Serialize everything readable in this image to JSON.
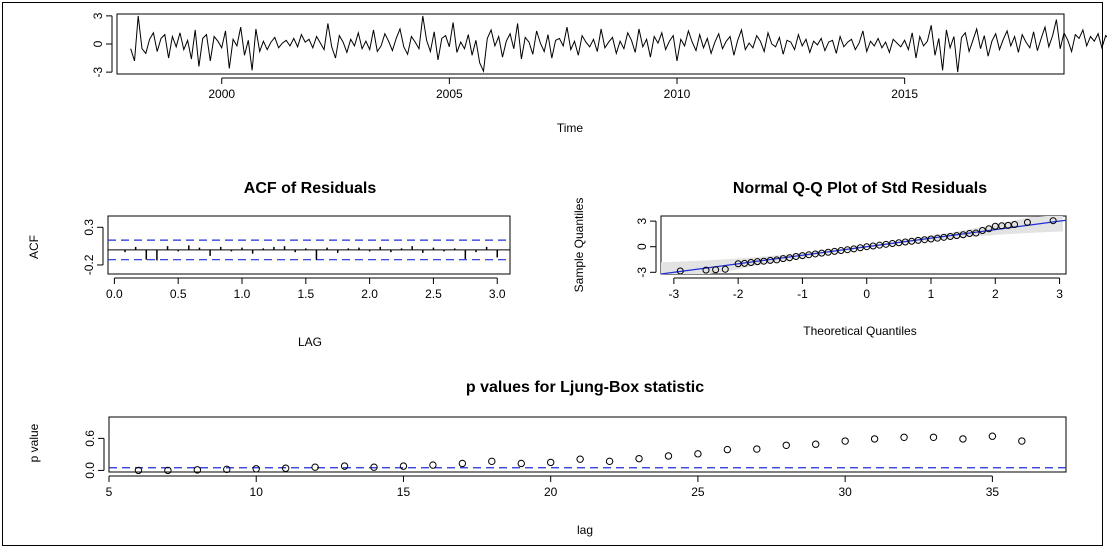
{
  "chart_data": [
    {
      "type": "line",
      "title": "",
      "xlabel": "Time",
      "ylabel": "",
      "xlim": [
        1997.7,
        2018.5
      ],
      "ylim": [
        -3.2,
        3.2
      ],
      "xticks": [
        "2000",
        "2005",
        "2010",
        "2015"
      ],
      "yticks": [
        "-3",
        "0",
        "3"
      ],
      "series": [
        {
          "x_start": 1998.0,
          "x_step": 0.08333,
          "values": [
            -0.5,
            -1.8,
            3.0,
            -0.5,
            -1.0,
            0.5,
            1.2,
            -0.8,
            0.6,
            1.0,
            -1.5,
            0.8,
            -0.3,
            1.2,
            -0.6,
            0.4,
            -1.6,
            1.5,
            -2.4,
            0.6,
            1.0,
            -1.8,
            0.8,
            0.3,
            -0.4,
            1.4,
            -2.6,
            0.5,
            -0.2,
            1.8,
            -1.2,
            0.4,
            -2.8,
            1.6,
            -0.8,
            0.3,
            -0.6,
            0.2,
            0.7,
            -0.4,
            0.1,
            0.4,
            -0.2,
            0.6,
            -0.3,
            1.0,
            0.2,
            0.5,
            -0.4,
            0.8,
            0.1,
            -0.6,
            2.2,
            -0.3,
            -1.5,
            0.9,
            0.2,
            -0.9,
            0.5,
            -0.2,
            1.2,
            -0.5,
            0.3,
            -0.6,
            1.5,
            -0.8,
            -0.2,
            1.1,
            0.3,
            -0.7,
            0.6,
            1.6,
            -0.3,
            -1.1,
            0.8,
            0.2,
            -0.5,
            3.0,
            0.4,
            -0.8,
            1.3,
            -1.7,
            0.6,
            0.9,
            -0.3,
            2.3,
            -0.9,
            0.2,
            -0.5,
            1.0,
            -1.2,
            0.4,
            -2.0,
            -2.9,
            0.6,
            1.5,
            -0.2,
            0.8,
            -1.4,
            0.3,
            1.1,
            -0.5,
            2.2,
            -1.6,
            0.7,
            0.2,
            -1.1,
            1.4,
            0.1,
            -0.8,
            1.0,
            -1.5,
            0.4,
            0.6,
            -0.2,
            1.8,
            -0.6,
            0.3,
            -1.2,
            0.9,
            0.2,
            -0.3,
            0.5,
            -0.8,
            1.6,
            -0.4,
            0.2,
            0.7,
            -1.0,
            0.3,
            -0.5,
            1.2,
            0.4,
            -0.9,
            1.6,
            -0.3,
            0.5,
            -1.4,
            0.8,
            0.1,
            1.2,
            -0.6,
            0.3,
            0.9,
            -1.8,
            0.5,
            -0.2,
            1.4,
            0.2,
            -0.7,
            1.0,
            -0.4,
            0.6,
            -1.0,
            0.2,
            1.1,
            -0.5,
            0.3,
            0.8,
            -1.2,
            0.4,
            1.5,
            -0.6,
            0.1,
            -0.4,
            0.9,
            0.3,
            -0.8,
            1.2,
            0.0,
            -0.3,
            0.7,
            -1.1,
            0.4,
            0.2,
            -0.6,
            1.0,
            -0.2,
            0.5,
            -0.9,
            0.3,
            -0.1,
            0.6,
            -0.7,
            0.2,
            0.4,
            -1.0,
            0.8,
            -0.3,
            0.2,
            0.5,
            -0.6,
            0.1,
            1.4,
            -0.8,
            0.3,
            -0.2,
            0.6,
            -0.4,
            0.2,
            -0.9,
            0.5,
            0.1,
            -0.3,
            0.4,
            -0.6,
            1.2,
            -1.5,
            0.8,
            -0.2,
            0.3,
            2.0,
            -1.2,
            0.6,
            -2.8,
            1.5,
            -0.4,
            0.8,
            -3.0,
            0.7,
            1.2,
            -0.8,
            0.4,
            1.6,
            -0.5,
            0.9,
            -1.3,
            0.3,
            1.1,
            -0.6,
            0.5,
            1.4,
            -0.2,
            0.8,
            -0.9,
            1.0,
            0.2,
            -0.4,
            1.3,
            -0.7,
            0.6,
            1.8,
            -0.3,
            0.9,
            2.6,
            -0.5,
            1.2,
            0.4,
            -0.8,
            1.0,
            0.6,
            1.5,
            -0.2,
            0.8,
            0.3,
            1.1,
            -0.4,
            0.9,
            0.5
          ]
        }
      ]
    },
    {
      "type": "bar",
      "title": "ACF of Residuals",
      "xlabel": "LAG",
      "ylabel": "ACF",
      "xlim": [
        -0.05,
        3.1
      ],
      "ylim": [
        -0.32,
        0.45
      ],
      "xticks": [
        "0.0",
        "0.5",
        "1.0",
        "1.5",
        "2.0",
        "2.5",
        "3.0"
      ],
      "yticks": [
        "-0.2",
        "0.3"
      ],
      "confidence_band": [
        -0.13,
        0.13
      ],
      "x": [
        0.0833,
        0.1667,
        0.25,
        0.3333,
        0.4167,
        0.5,
        0.5833,
        0.6667,
        0.75,
        0.8333,
        0.9167,
        1.0,
        1.0833,
        1.1667,
        1.25,
        1.3333,
        1.4167,
        1.5,
        1.5833,
        1.6667,
        1.75,
        1.8333,
        1.9167,
        2.0,
        2.0833,
        2.1667,
        2.25,
        2.3333,
        2.4167,
        2.5,
        2.5833,
        2.6667,
        2.75,
        2.8333,
        2.9167,
        3.0
      ],
      "values": [
        -0.03,
        0.04,
        -0.13,
        -0.14,
        0.05,
        -0.02,
        0.06,
        0.03,
        -0.08,
        0.04,
        -0.02,
        0.03,
        -0.05,
        0.02,
        0.04,
        0.05,
        -0.03,
        0.02,
        -0.13,
        0.03,
        -0.04,
        0.02,
        0.03,
        -0.02,
        0.04,
        -0.03,
        0.02,
        0.05,
        -0.04,
        0.03,
        -0.02,
        0.02,
        -0.12,
        -0.03,
        0.04,
        -0.1
      ]
    },
    {
      "type": "scatter",
      "title": "Normal Q-Q Plot of Std Residuals",
      "xlabel": "Theoretical Quantiles",
      "ylabel": "Sample Quantiles",
      "xlim": [
        -3.2,
        3.1
      ],
      "ylim": [
        -3.2,
        3.6
      ],
      "xticks": [
        "-3",
        "-2",
        "-1",
        "0",
        "1",
        "2",
        "3"
      ],
      "yticks": [
        "-3",
        "0",
        "3"
      ],
      "reference_line": {
        "intercept": 0.0,
        "slope": 1.0
      },
      "points": [
        [
          -2.9,
          -2.85
        ],
        [
          -2.5,
          -2.75
        ],
        [
          -2.35,
          -2.7
        ],
        [
          -2.2,
          -2.65
        ],
        [
          -2.0,
          -2.0
        ],
        [
          -1.9,
          -1.95
        ],
        [
          -1.8,
          -1.85
        ],
        [
          -1.7,
          -1.75
        ],
        [
          -1.6,
          -1.7
        ],
        [
          -1.5,
          -1.6
        ],
        [
          -1.4,
          -1.55
        ],
        [
          -1.3,
          -1.4
        ],
        [
          -1.2,
          -1.3
        ],
        [
          -1.1,
          -1.15
        ],
        [
          -1.0,
          -1.05
        ],
        [
          -0.9,
          -0.95
        ],
        [
          -0.8,
          -0.85
        ],
        [
          -0.7,
          -0.75
        ],
        [
          -0.6,
          -0.65
        ],
        [
          -0.5,
          -0.55
        ],
        [
          -0.4,
          -0.45
        ],
        [
          -0.3,
          -0.35
        ],
        [
          -0.2,
          -0.25
        ],
        [
          -0.1,
          -0.12
        ],
        [
          0.0,
          0.0
        ],
        [
          0.1,
          0.08
        ],
        [
          0.2,
          0.18
        ],
        [
          0.3,
          0.28
        ],
        [
          0.4,
          0.38
        ],
        [
          0.5,
          0.46
        ],
        [
          0.6,
          0.55
        ],
        [
          0.7,
          0.64
        ],
        [
          0.8,
          0.74
        ],
        [
          0.9,
          0.82
        ],
        [
          1.0,
          0.9
        ],
        [
          1.1,
          1.0
        ],
        [
          1.2,
          1.1
        ],
        [
          1.3,
          1.2
        ],
        [
          1.4,
          1.3
        ],
        [
          1.5,
          1.4
        ],
        [
          1.6,
          1.55
        ],
        [
          1.7,
          1.6
        ],
        [
          1.8,
          1.9
        ],
        [
          1.9,
          2.1
        ],
        [
          2.0,
          2.4
        ],
        [
          2.1,
          2.45
        ],
        [
          2.2,
          2.5
        ],
        [
          2.3,
          2.6
        ],
        [
          2.5,
          2.85
        ],
        [
          2.9,
          3.05
        ]
      ]
    },
    {
      "type": "scatter",
      "title": "p values for Ljung-Box statistic",
      "xlabel": "lag",
      "ylabel": "p value",
      "xlim": [
        5,
        37.5
      ],
      "ylim": [
        -0.03,
        1.0
      ],
      "xticks": [
        "5",
        "10",
        "15",
        "20",
        "25",
        "30",
        "35"
      ],
      "yticks": [
        "0.0",
        "0.6"
      ],
      "reference_line": {
        "y": 0.05
      },
      "x": [
        6,
        7,
        8,
        9,
        10,
        11,
        12,
        13,
        14,
        15,
        16,
        17,
        18,
        19,
        20,
        21,
        22,
        23,
        24,
        25,
        26,
        27,
        28,
        29,
        30,
        31,
        32,
        33,
        34,
        35,
        36
      ],
      "values": [
        0.0,
        0.0,
        0.01,
        0.02,
        0.03,
        0.04,
        0.06,
        0.08,
        0.06,
        0.08,
        0.1,
        0.13,
        0.17,
        0.13,
        0.15,
        0.21,
        0.17,
        0.22,
        0.27,
        0.31,
        0.39,
        0.4,
        0.47,
        0.49,
        0.55,
        0.59,
        0.62,
        0.62,
        0.59,
        0.64,
        0.55
      ]
    }
  ]
}
